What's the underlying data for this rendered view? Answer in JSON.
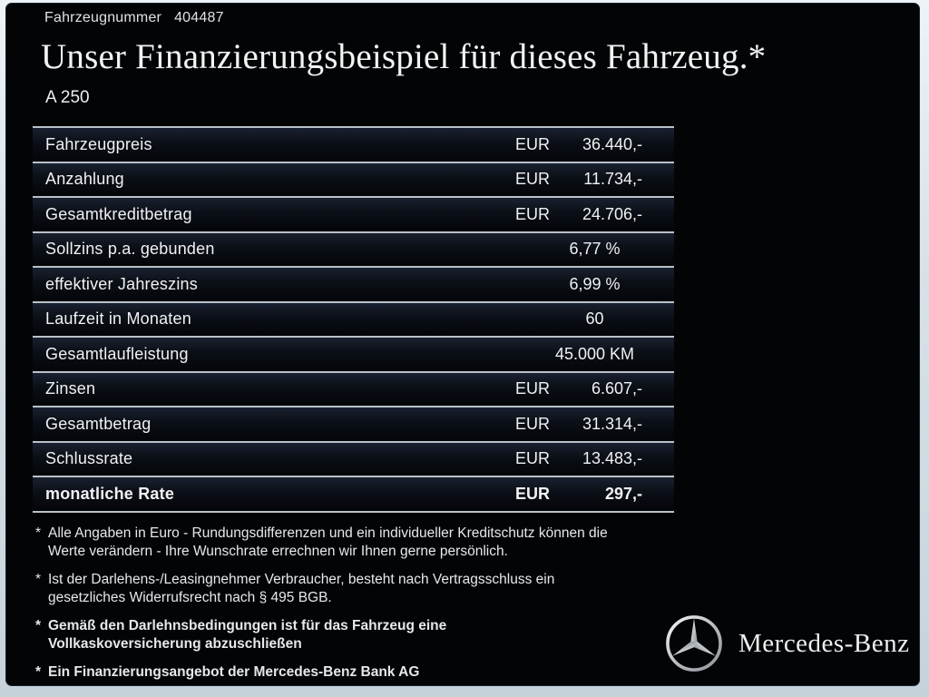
{
  "header": {
    "vehicle_number_label": "Fahrzeugnummer",
    "vehicle_number": "404487"
  },
  "title": "Unser Finanzierungsbeispiel für dieses Fahrzeug.*",
  "model": "A 250",
  "table": {
    "rows": [
      {
        "label": "Fahrzeugpreis",
        "currency": "EUR",
        "amount": "36.440,-",
        "bold": false
      },
      {
        "label": "Anzahlung",
        "currency": "EUR",
        "amount": "11.734,-",
        "bold": false
      },
      {
        "label": "Gesamtkreditbetrag",
        "currency": "EUR",
        "amount": "24.706,-",
        "bold": false
      },
      {
        "label": "Sollzins p.a. gebunden",
        "value": "6,77 %",
        "bold": false
      },
      {
        "label": "effektiver Jahreszins",
        "value": "6,99 %",
        "bold": false
      },
      {
        "label": "Laufzeit in Monaten",
        "value": "60",
        "bold": false
      },
      {
        "label": "Gesamtlaufleistung",
        "value": "45.000 KM",
        "bold": false
      },
      {
        "label": "Zinsen",
        "currency": "EUR",
        "amount": "6.607,-",
        "bold": false
      },
      {
        "label": "Gesamtbetrag",
        "currency": "EUR",
        "amount": "31.314,-",
        "bold": false
      },
      {
        "label": "Schlussrate",
        "currency": "EUR",
        "amount": "13.483,-",
        "bold": false
      },
      {
        "label": "monatliche Rate",
        "currency": "EUR",
        "amount": "297,-",
        "bold": true
      }
    ]
  },
  "footnotes": [
    {
      "marker": "*",
      "bold": false,
      "lines": [
        "Alle Angaben in Euro - Rundungsdifferenzen und ein individueller Kreditschutz können die",
        "Werte verändern - Ihre Wunschrate errechnen wir Ihnen gerne persönlich."
      ]
    },
    {
      "marker": "*",
      "bold": false,
      "lines": [
        "Ist der Darlehens-/Leasingnehmer Verbraucher, besteht nach Vertragsschluss ein",
        "gesetzliches Widerrufsrecht nach § 495 BGB."
      ]
    },
    {
      "marker": "*",
      "bold": true,
      "lines": [
        "Gemäß den Darlehnsbedingungen ist für das Fahrzeug eine",
        "Vollkaskoversicherung abzuschließen"
      ]
    },
    {
      "marker": "*",
      "bold": true,
      "lines": [
        "Ein Finanzierungsangebot der Mercedes-Benz Bank AG"
      ]
    }
  ],
  "brand": {
    "name": "Mercedes-Benz",
    "logo": "mercedes-star-icon"
  },
  "colors": {
    "frame": "#d3dde4",
    "slide_background": "#030405",
    "separator_line": "#b9c2ca",
    "text": "#e9ebee"
  }
}
